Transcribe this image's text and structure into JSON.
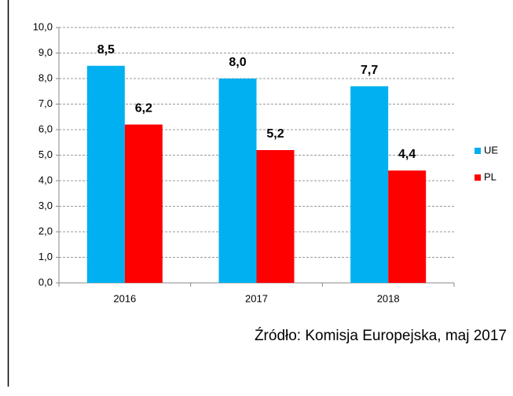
{
  "chart_data": {
    "type": "bar",
    "categories": [
      "2016",
      "2017",
      "2018"
    ],
    "series": [
      {
        "name": "UE",
        "color": "#00b0f0",
        "values": [
          8.5,
          8.0,
          7.7
        ],
        "value_labels": [
          "8,5",
          "8,0",
          "7,7"
        ]
      },
      {
        "name": "PL",
        "color": "#ff0000",
        "values": [
          6.2,
          5.2,
          4.4
        ],
        "value_labels": [
          "6,2",
          "5,2",
          "4,4"
        ]
      }
    ],
    "ylim": [
      0,
      10
    ],
    "yticks": [
      {
        "value": 0,
        "label": "0,0"
      },
      {
        "value": 1,
        "label": "1,0"
      },
      {
        "value": 2,
        "label": "2,0"
      },
      {
        "value": 3,
        "label": "3,0"
      },
      {
        "value": 4,
        "label": "4,0"
      },
      {
        "value": 5,
        "label": "5,0"
      },
      {
        "value": 6,
        "label": "6,0"
      },
      {
        "value": 7,
        "label": "7,0"
      },
      {
        "value": 8,
        "label": "8,0"
      },
      {
        "value": 9,
        "label": "9,0"
      },
      {
        "value": 10,
        "label": "10,0"
      }
    ],
    "grid": true,
    "legend": "right",
    "source": "Źródło: Komisja Europejska, maj 2017"
  }
}
